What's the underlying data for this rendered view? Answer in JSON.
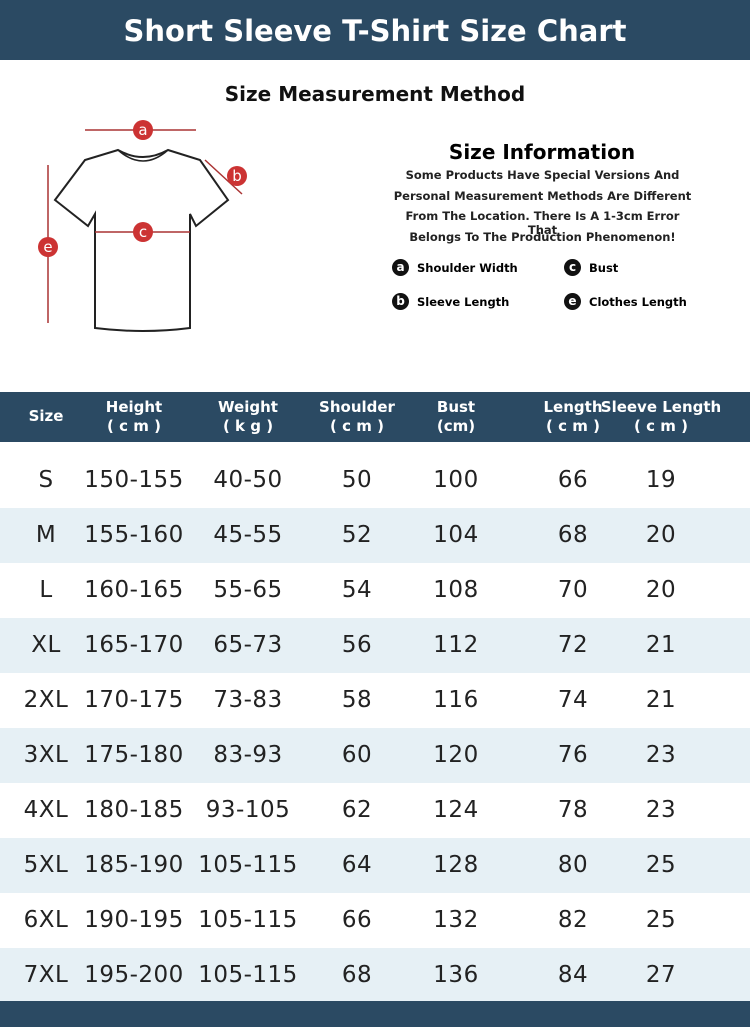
{
  "header": {
    "title": "Short Sleeve T-Shirt Size Chart"
  },
  "method": {
    "title": "Size Measurement Method",
    "markers": [
      "a",
      "b",
      "c",
      "e"
    ]
  },
  "info": {
    "title": "Size Information",
    "lines": [
      "Some Products Have Special Versions And",
      "Personal Measurement Methods Are Different",
      "From The Location. There Is A 1-3cm Error That",
      "Belongs To The Production Phenomenon!"
    ],
    "legend": [
      {
        "letter": "a",
        "label": "Shoulder Width"
      },
      {
        "letter": "c",
        "label": "Bust"
      },
      {
        "letter": "b",
        "label": "Sleeve Length"
      },
      {
        "letter": "e",
        "label": "Clothes Length"
      }
    ]
  },
  "table": {
    "columns": [
      {
        "name": "Size"
      },
      {
        "name": "Height",
        "unit": "( c m )"
      },
      {
        "name": "Weight",
        "unit": "( k g )"
      },
      {
        "name": "Shoulder",
        "unit": "( c m )"
      },
      {
        "name": "Bust",
        "unit": "(cm)"
      },
      {
        "name": "Length",
        "unit": "( c m )"
      },
      {
        "name": "Sleeve Length",
        "unit": "( c m )"
      }
    ],
    "rows": [
      [
        "S",
        "150-155",
        "40-50",
        50,
        100,
        66,
        19
      ],
      [
        "M",
        "155-160",
        "45-55",
        52,
        104,
        68,
        20
      ],
      [
        "L",
        "160-165",
        "55-65",
        54,
        108,
        70,
        20
      ],
      [
        "XL",
        "165-170",
        "65-73",
        56,
        112,
        72,
        21
      ],
      [
        "2XL",
        "170-175",
        "73-83",
        58,
        116,
        74,
        21
      ],
      [
        "3XL",
        "175-180",
        "83-93",
        60,
        120,
        76,
        23
      ],
      [
        "4XL",
        "180-185",
        "93-105",
        62,
        124,
        78,
        23
      ],
      [
        "5XL",
        "185-190",
        "105-115",
        64,
        128,
        80,
        25
      ],
      [
        "6XL",
        "190-195",
        "105-115",
        66,
        132,
        82,
        25
      ],
      [
        "7XL",
        "195-200",
        "105-115",
        68,
        136,
        84,
        27
      ]
    ]
  }
}
